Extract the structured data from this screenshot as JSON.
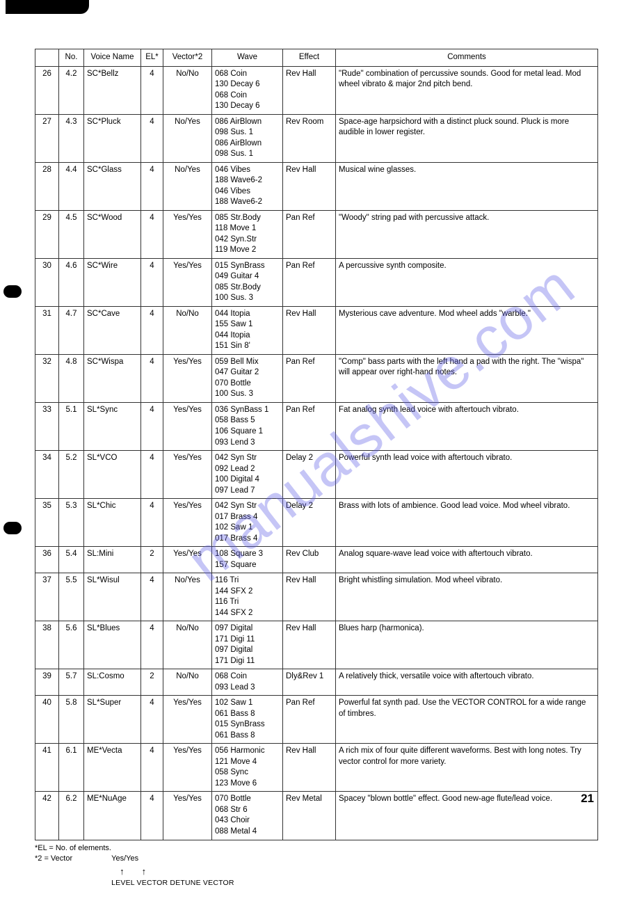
{
  "watermark": "manualshive.com",
  "page_number": "21",
  "footnote1": "*EL = No. of elements.",
  "footnote2_label": "*2 = Vector",
  "footnote2_value": "Yes/Yes",
  "footnote2_sub": "LEVEL VECTOR   DETUNE VECTOR",
  "columns": [
    "",
    "No.",
    "Voice Name",
    "EL*",
    "Vector*2",
    "Wave",
    "Effect",
    "Comments"
  ],
  "rows": [
    {
      "idx": "26",
      "no": "4.2",
      "name": "SC*Bellz",
      "el": "4",
      "vec": "No/No",
      "wave": [
        "068 Coin",
        "130 Decay 6",
        "068 Coin",
        "130 Decay 6"
      ],
      "eff": "Rev Hall",
      "com": "\"Rude\" combination of percussive sounds. Good for metal lead. Mod wheel vibrato & major 2nd pitch bend."
    },
    {
      "idx": "27",
      "no": "4.3",
      "name": "SC*Pluck",
      "el": "4",
      "vec": "No/Yes",
      "wave": [
        "086 AirBlown",
        "098 Sus. 1",
        "086 AirBlown",
        "098 Sus. 1"
      ],
      "eff": "Rev Room",
      "com": "Space-age harpsichord with a distinct pluck sound. Pluck is more audible in lower register."
    },
    {
      "idx": "28",
      "no": "4.4",
      "name": "SC*Glass",
      "el": "4",
      "vec": "No/Yes",
      "wave": [
        "046 Vibes",
        "188 Wave6-2",
        "046 Vibes",
        "188 Wave6-2"
      ],
      "eff": "Rev Hall",
      "com": "Musical wine glasses."
    },
    {
      "idx": "29",
      "no": "4.5",
      "name": "SC*Wood",
      "el": "4",
      "vec": "Yes/Yes",
      "wave": [
        "085 Str.Body",
        "118 Move 1",
        "042 Syn.Str",
        "119 Move 2"
      ],
      "eff": "Pan Ref",
      "com": "\"Woody\" string pad with percussive attack."
    },
    {
      "idx": "30",
      "no": "4.6",
      "name": "SC*Wire",
      "el": "4",
      "vec": "Yes/Yes",
      "wave": [
        "015 SynBrass",
        "049 Guitar 4",
        "085 Str.Body",
        "100 Sus. 3"
      ],
      "eff": "Pan Ref",
      "com": "A percussive synth composite."
    },
    {
      "idx": "31",
      "no": "4.7",
      "name": "SC*Cave",
      "el": "4",
      "vec": "No/No",
      "wave": [
        "044 Itopia",
        "155 Saw 1",
        "044 Itopia",
        "151 Sin 8'"
      ],
      "eff": "Rev Hall",
      "com": "Mysterious cave adventure. Mod wheel adds \"warble.\""
    },
    {
      "idx": "32",
      "no": "4.8",
      "name": "SC*Wispa",
      "el": "4",
      "vec": "Yes/Yes",
      "wave": [
        "059 Bell Mix",
        "047 Guitar 2",
        "070 Bottle",
        "100 Sus. 3"
      ],
      "eff": "Pan Ref",
      "com": "\"Comp\" bass parts with the left hand a pad with the right. The \"wispa\" will appear over right-hand notes."
    },
    {
      "idx": "33",
      "no": "5.1",
      "name": "SL*Sync",
      "el": "4",
      "vec": "Yes/Yes",
      "wave": [
        "036 SynBass 1",
        "058 Bass 5",
        "106 Square 1",
        "093 Lend 3"
      ],
      "eff": "Pan Ref",
      "com": "Fat analog synth lead voice with aftertouch vibrato."
    },
    {
      "idx": "34",
      "no": "5.2",
      "name": "SL*VCO",
      "el": "4",
      "vec": "Yes/Yes",
      "wave": [
        "042 Syn Str",
        "092 Lead 2",
        "100 Digital 4",
        "097 Lead 7"
      ],
      "eff": "Delay 2",
      "com": "Powerful synth lead voice with aftertouch vibrato."
    },
    {
      "idx": "35",
      "no": "5.3",
      "name": "SL*Chic",
      "el": "4",
      "vec": "Yes/Yes",
      "wave": [
        "042 Syn Str",
        "017 Brass 4",
        "102 Saw 1",
        "017 Brass 4"
      ],
      "eff": "Delay 2",
      "com": "Brass with lots of ambience. Good lead voice. Mod wheel vibrato."
    },
    {
      "idx": "36",
      "no": "5.4",
      "name": "SL:Mini",
      "el": "2",
      "vec": "Yes/Yes",
      "wave": [
        "108 Square 3",
        "157 Square"
      ],
      "eff": "Rev Club",
      "com": "Analog square-wave lead voice with aftertouch vibrato."
    },
    {
      "idx": "37",
      "no": "5.5",
      "name": "SL*Wisul",
      "el": "4",
      "vec": "No/Yes",
      "wave": [
        "116 Tri",
        "144 SFX 2",
        "116 Tri",
        "144 SFX 2"
      ],
      "eff": "Rev Hall",
      "com": "Bright whistling simulation. Mod wheel vibrato."
    },
    {
      "idx": "38",
      "no": "5.6",
      "name": "SL*Blues",
      "el": "4",
      "vec": "No/No",
      "wave": [
        "097 Digital",
        "171 Digi 11",
        "097 Digital",
        "171 Digi 11"
      ],
      "eff": "Rev Hall",
      "com": "Blues harp (harmonica)."
    },
    {
      "idx": "39",
      "no": "5.7",
      "name": "SL:Cosmo",
      "el": "2",
      "vec": "No/No",
      "wave": [
        "068 Coin",
        "093 Lead 3"
      ],
      "eff": "Dly&Rev 1",
      "com": "A relatively thick, versatile voice with aftertouch vibrato."
    },
    {
      "idx": "40",
      "no": "5.8",
      "name": "SL*Super",
      "el": "4",
      "vec": "Yes/Yes",
      "wave": [
        "102 Saw 1",
        "061 Bass 8",
        "015 SynBrass",
        "061 Bass 8"
      ],
      "eff": "Pan Ref",
      "com": "Powerful fat synth pad. Use the VECTOR CONTROL for a wide range of timbres."
    },
    {
      "idx": "41",
      "no": "6.1",
      "name": "ME*Vecta",
      "el": "4",
      "vec": "Yes/Yes",
      "wave": [
        "056 Harmonic",
        "121 Move 4",
        "058 Sync",
        "123 Move 6"
      ],
      "eff": "Rev Hall",
      "com": "A rich mix of four quite different waveforms. Best with long notes. Try vector control for more variety."
    },
    {
      "idx": "42",
      "no": "6.2",
      "name": "ME*NuAge",
      "el": "4",
      "vec": "Yes/Yes",
      "wave": [
        "070 Bottle",
        "068 Str 6",
        "043 Choir",
        "088 Metal 4"
      ],
      "eff": "Rev Metal",
      "com": "Spacey \"blown bottle\" effect. Good new-age flute/lead voice."
    }
  ]
}
